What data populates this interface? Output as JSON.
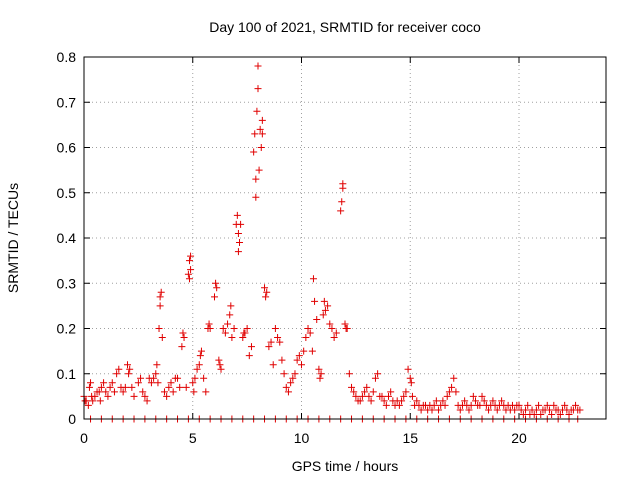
{
  "chart_data": {
    "type": "scatter",
    "title": "Day 100 of 2021, SRMTID for receiver coco",
    "xlabel": "GPS time / hours",
    "ylabel": "SRMTID / TECUs",
    "xlim": [
      0,
      24
    ],
    "ylim": [
      0,
      0.8
    ],
    "xticks": [
      0,
      5,
      10,
      15,
      20
    ],
    "yticks": [
      0,
      0.1,
      0.2,
      0.3,
      0.4,
      0.5,
      0.6,
      0.7,
      0.8
    ],
    "grid": true,
    "marker": "+",
    "color": "#e00000",
    "series": [
      {
        "name": "SRMTID",
        "points": [
          [
            0.0,
            0.05
          ],
          [
            0.05,
            0.04
          ],
          [
            0.1,
            0.04
          ],
          [
            0.2,
            0.03
          ],
          [
            0.25,
            0.07
          ],
          [
            0.3,
            0.08
          ],
          [
            0.35,
            0.05
          ],
          [
            0.4,
            0.04
          ],
          [
            0.5,
            0.05
          ],
          [
            0.6,
            0.06
          ],
          [
            0.7,
            0.06
          ],
          [
            0.75,
            0.04
          ],
          [
            0.8,
            0.07
          ],
          [
            0.9,
            0.08
          ],
          [
            1.0,
            0.06
          ],
          [
            1.1,
            0.05
          ],
          [
            1.2,
            0.07
          ],
          [
            1.3,
            0.08
          ],
          [
            1.4,
            0.06
          ],
          [
            1.5,
            0.1
          ],
          [
            1.6,
            0.11
          ],
          [
            1.7,
            0.07
          ],
          [
            1.8,
            0.06
          ],
          [
            1.9,
            0.07
          ],
          [
            2.0,
            0.12
          ],
          [
            2.05,
            0.1
          ],
          [
            2.1,
            0.11
          ],
          [
            2.2,
            0.07
          ],
          [
            2.3,
            0.05
          ],
          [
            2.5,
            0.08
          ],
          [
            2.6,
            0.09
          ],
          [
            2.7,
            0.06
          ],
          [
            2.8,
            0.05
          ],
          [
            2.9,
            0.04
          ],
          [
            3.0,
            0.09
          ],
          [
            3.1,
            0.08
          ],
          [
            3.2,
            0.09
          ],
          [
            3.3,
            0.1
          ],
          [
            3.35,
            0.12
          ],
          [
            3.4,
            0.08
          ],
          [
            3.45,
            0.2
          ],
          [
            3.5,
            0.25
          ],
          [
            3.5,
            0.27
          ],
          [
            3.55,
            0.28
          ],
          [
            3.6,
            0.18
          ],
          [
            3.7,
            0.06
          ],
          [
            3.8,
            0.05
          ],
          [
            3.9,
            0.07
          ],
          [
            4.0,
            0.08
          ],
          [
            4.1,
            0.06
          ],
          [
            4.2,
            0.09
          ],
          [
            4.3,
            0.09
          ],
          [
            4.4,
            0.07
          ],
          [
            4.5,
            0.16
          ],
          [
            4.55,
            0.19
          ],
          [
            4.6,
            0.18
          ],
          [
            4.7,
            0.07
          ],
          [
            4.8,
            0.32
          ],
          [
            4.85,
            0.35
          ],
          [
            4.85,
            0.31
          ],
          [
            4.9,
            0.33
          ],
          [
            4.9,
            0.36
          ],
          [
            5.0,
            0.08
          ],
          [
            5.05,
            0.06
          ],
          [
            5.1,
            0.09
          ],
          [
            5.2,
            0.11
          ],
          [
            5.3,
            0.12
          ],
          [
            5.35,
            0.14
          ],
          [
            5.4,
            0.15
          ],
          [
            5.5,
            0.09
          ],
          [
            5.6,
            0.06
          ],
          [
            5.7,
            0.2
          ],
          [
            5.75,
            0.21
          ],
          [
            5.8,
            0.2
          ],
          [
            6.0,
            0.27
          ],
          [
            6.05,
            0.3
          ],
          [
            6.1,
            0.29
          ],
          [
            6.2,
            0.13
          ],
          [
            6.25,
            0.12
          ],
          [
            6.3,
            0.11
          ],
          [
            6.4,
            0.2
          ],
          [
            6.5,
            0.19
          ],
          [
            6.6,
            0.21
          ],
          [
            6.7,
            0.23
          ],
          [
            6.75,
            0.25
          ],
          [
            6.8,
            0.18
          ],
          [
            6.9,
            0.2
          ],
          [
            7.0,
            0.43
          ],
          [
            7.05,
            0.45
          ],
          [
            7.1,
            0.41
          ],
          [
            7.1,
            0.37
          ],
          [
            7.15,
            0.39
          ],
          [
            7.2,
            0.43
          ],
          [
            7.3,
            0.18
          ],
          [
            7.35,
            0.19
          ],
          [
            7.4,
            0.19
          ],
          [
            7.5,
            0.2
          ],
          [
            7.6,
            0.14
          ],
          [
            7.7,
            0.16
          ],
          [
            7.8,
            0.59
          ],
          [
            7.85,
            0.63
          ],
          [
            7.9,
            0.53
          ],
          [
            7.9,
            0.49
          ],
          [
            7.95,
            0.68
          ],
          [
            8.0,
            0.78
          ],
          [
            8.0,
            0.73
          ],
          [
            8.05,
            0.55
          ],
          [
            8.1,
            0.64
          ],
          [
            8.15,
            0.6
          ],
          [
            8.2,
            0.66
          ],
          [
            8.2,
            0.63
          ],
          [
            8.3,
            0.29
          ],
          [
            8.35,
            0.27
          ],
          [
            8.4,
            0.28
          ],
          [
            8.5,
            0.16
          ],
          [
            8.6,
            0.17
          ],
          [
            8.7,
            0.12
          ],
          [
            8.8,
            0.2
          ],
          [
            8.9,
            0.18
          ],
          [
            9.0,
            0.17
          ],
          [
            9.1,
            0.13
          ],
          [
            9.2,
            0.1
          ],
          [
            9.3,
            0.07
          ],
          [
            9.4,
            0.06
          ],
          [
            9.5,
            0.08
          ],
          [
            9.6,
            0.09
          ],
          [
            9.7,
            0.1
          ],
          [
            9.8,
            0.13
          ],
          [
            9.9,
            0.14
          ],
          [
            10.0,
            0.12
          ],
          [
            10.1,
            0.15
          ],
          [
            10.2,
            0.18
          ],
          [
            10.3,
            0.2
          ],
          [
            10.4,
            0.19
          ],
          [
            10.5,
            0.15
          ],
          [
            10.55,
            0.31
          ],
          [
            10.6,
            0.26
          ],
          [
            10.7,
            0.22
          ],
          [
            10.8,
            0.11
          ],
          [
            10.85,
            0.09
          ],
          [
            10.9,
            0.1
          ],
          [
            11.0,
            0.23
          ],
          [
            11.05,
            0.26
          ],
          [
            11.1,
            0.24
          ],
          [
            11.2,
            0.25
          ],
          [
            11.3,
            0.21
          ],
          [
            11.4,
            0.2
          ],
          [
            11.5,
            0.18
          ],
          [
            11.6,
            0.19
          ],
          [
            11.8,
            0.46
          ],
          [
            11.85,
            0.48
          ],
          [
            11.9,
            0.51
          ],
          [
            11.9,
            0.52
          ],
          [
            12.0,
            0.21
          ],
          [
            12.05,
            0.2
          ],
          [
            12.1,
            0.2
          ],
          [
            12.2,
            0.1
          ],
          [
            12.3,
            0.07
          ],
          [
            12.4,
            0.06
          ],
          [
            12.5,
            0.05
          ],
          [
            12.6,
            0.04
          ],
          [
            12.7,
            0.04
          ],
          [
            12.8,
            0.05
          ],
          [
            12.9,
            0.06
          ],
          [
            13.0,
            0.07
          ],
          [
            13.1,
            0.05
          ],
          [
            13.2,
            0.04
          ],
          [
            13.3,
            0.06
          ],
          [
            13.4,
            0.09
          ],
          [
            13.5,
            0.1
          ],
          [
            13.6,
            0.05
          ],
          [
            13.7,
            0.05
          ],
          [
            13.8,
            0.04
          ],
          [
            13.9,
            0.03
          ],
          [
            14.0,
            0.05
          ],
          [
            14.1,
            0.06
          ],
          [
            14.2,
            0.04
          ],
          [
            14.3,
            0.03
          ],
          [
            14.4,
            0.04
          ],
          [
            14.5,
            0.03
          ],
          [
            14.6,
            0.04
          ],
          [
            14.7,
            0.05
          ],
          [
            14.8,
            0.06
          ],
          [
            14.9,
            0.11
          ],
          [
            15.0,
            0.09
          ],
          [
            15.05,
            0.08
          ],
          [
            15.1,
            0.05
          ],
          [
            15.2,
            0.03
          ],
          [
            15.3,
            0.04
          ],
          [
            15.4,
            0.03
          ],
          [
            15.5,
            0.02
          ],
          [
            15.6,
            0.03
          ],
          [
            15.7,
            0.03
          ],
          [
            15.8,
            0.02
          ],
          [
            15.9,
            0.03
          ],
          [
            16.0,
            0.02
          ],
          [
            16.1,
            0.03
          ],
          [
            16.2,
            0.04
          ],
          [
            16.3,
            0.02
          ],
          [
            16.4,
            0.03
          ],
          [
            16.5,
            0.04
          ],
          [
            16.6,
            0.03
          ],
          [
            16.7,
            0.05
          ],
          [
            16.8,
            0.06
          ],
          [
            16.9,
            0.07
          ],
          [
            17.0,
            0.09
          ],
          [
            17.1,
            0.06
          ],
          [
            17.2,
            0.03
          ],
          [
            17.3,
            0.02
          ],
          [
            17.4,
            0.03
          ],
          [
            17.5,
            0.04
          ],
          [
            17.6,
            0.03
          ],
          [
            17.7,
            0.02
          ],
          [
            17.8,
            0.03
          ],
          [
            17.9,
            0.05
          ],
          [
            18.0,
            0.04
          ],
          [
            18.1,
            0.03
          ],
          [
            18.2,
            0.03
          ],
          [
            18.3,
            0.05
          ],
          [
            18.4,
            0.04
          ],
          [
            18.5,
            0.03
          ],
          [
            18.6,
            0.02
          ],
          [
            18.7,
            0.03
          ],
          [
            18.8,
            0.04
          ],
          [
            18.9,
            0.03
          ],
          [
            19.0,
            0.02
          ],
          [
            19.1,
            0.03
          ],
          [
            19.2,
            0.04
          ],
          [
            19.3,
            0.03
          ],
          [
            19.4,
            0.02
          ],
          [
            19.5,
            0.03
          ],
          [
            19.6,
            0.02
          ],
          [
            19.7,
            0.03
          ],
          [
            19.8,
            0.02
          ],
          [
            19.9,
            0.03
          ],
          [
            20.0,
            0.03
          ],
          [
            20.1,
            0.02
          ],
          [
            20.2,
            0.01
          ],
          [
            20.3,
            0.02
          ],
          [
            20.4,
            0.03
          ],
          [
            20.5,
            0.01
          ],
          [
            20.6,
            0.02
          ],
          [
            20.7,
            0.01
          ],
          [
            20.8,
            0.02
          ],
          [
            20.9,
            0.03
          ],
          [
            21.0,
            0.01
          ],
          [
            21.1,
            0.02
          ],
          [
            21.2,
            0.02
          ],
          [
            21.3,
            0.03
          ],
          [
            21.4,
            0.02
          ],
          [
            21.5,
            0.01
          ],
          [
            21.6,
            0.03
          ],
          [
            21.7,
            0.02
          ],
          [
            21.8,
            0.02
          ],
          [
            21.9,
            0.01
          ],
          [
            22.0,
            0.02
          ],
          [
            22.1,
            0.03
          ],
          [
            22.2,
            0.02
          ],
          [
            22.3,
            0.01
          ],
          [
            22.4,
            0.02
          ],
          [
            22.5,
            0.02
          ],
          [
            22.6,
            0.03
          ],
          [
            22.7,
            0.02
          ],
          [
            22.8,
            0.02
          ],
          [
            0.3,
            0.0
          ],
          [
            0.8,
            0.0
          ],
          [
            1.3,
            0.0
          ],
          [
            1.8,
            0.0
          ],
          [
            2.3,
            0.0
          ],
          [
            2.8,
            0.0
          ],
          [
            3.3,
            0.0
          ],
          [
            3.8,
            0.0
          ],
          [
            4.3,
            0.0
          ],
          [
            4.8,
            0.0
          ],
          [
            5.3,
            0.0
          ],
          [
            5.8,
            0.0
          ],
          [
            6.3,
            0.0
          ],
          [
            6.8,
            0.0
          ],
          [
            7.3,
            0.0
          ],
          [
            7.8,
            0.0
          ],
          [
            8.3,
            0.0
          ],
          [
            8.8,
            0.0
          ],
          [
            9.3,
            0.0
          ],
          [
            9.8,
            0.0
          ],
          [
            10.3,
            0.0
          ],
          [
            10.8,
            0.0
          ],
          [
            11.3,
            0.0
          ],
          [
            11.8,
            0.0
          ],
          [
            12.3,
            0.0
          ],
          [
            12.8,
            0.0
          ],
          [
            13.3,
            0.0
          ],
          [
            13.8,
            0.0
          ],
          [
            14.3,
            0.0
          ],
          [
            14.8,
            0.0
          ],
          [
            15.3,
            0.0
          ],
          [
            15.8,
            0.0
          ],
          [
            16.3,
            0.0
          ],
          [
            16.8,
            0.0
          ],
          [
            17.3,
            0.0
          ],
          [
            17.8,
            0.0
          ],
          [
            18.3,
            0.0
          ],
          [
            18.8,
            0.0
          ],
          [
            19.3,
            0.0
          ],
          [
            19.8,
            0.0
          ],
          [
            20.3,
            0.0
          ],
          [
            20.8,
            0.0
          ],
          [
            21.3,
            0.0
          ],
          [
            21.8,
            0.0
          ],
          [
            22.3,
            0.0
          ],
          [
            22.7,
            0.0
          ]
        ]
      }
    ]
  }
}
